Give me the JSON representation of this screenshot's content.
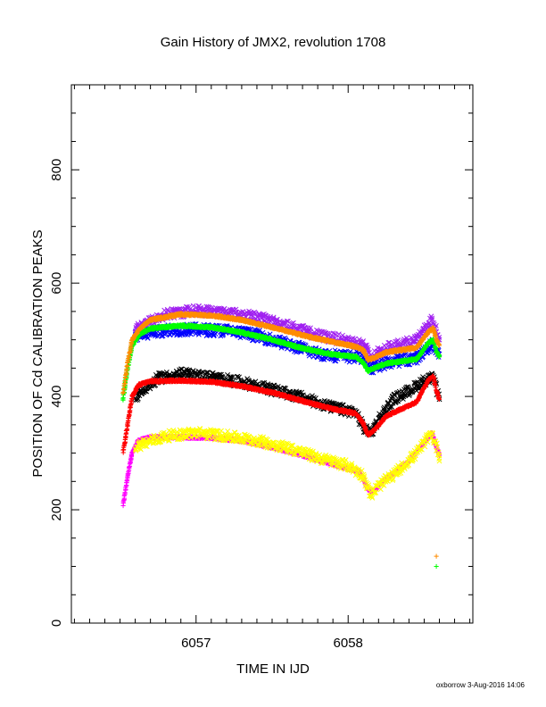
{
  "chart_data": {
    "type": "scatter",
    "title": "Gain History of JMX2, revolution 1708",
    "xlabel": "TIME IN IJD",
    "ylabel": "POSITION OF Cd CALIBRATION PEAKS",
    "xlim": [
      6056.18,
      6058.82
    ],
    "ylim": [
      0,
      950
    ],
    "x_ticks": [
      6057,
      6058
    ],
    "x_minor_step": 0.1,
    "y_ticks": [
      0,
      200,
      400,
      600,
      800
    ],
    "y_minor_step": 50,
    "grid": false,
    "footer": "oxborrow  3-Aug-2016 14:06",
    "series": [
      {
        "color": "#ff00ff",
        "marker": "plus",
        "density": 90,
        "jitter": 2,
        "points": [
          [
            6056.52,
            208
          ],
          [
            6056.55,
            260
          ],
          [
            6056.58,
            300
          ],
          [
            6056.62,
            322
          ],
          [
            6056.7,
            328
          ],
          [
            6056.9,
            328
          ],
          [
            6057.1,
            327
          ],
          [
            6057.3,
            322
          ],
          [
            6057.5,
            310
          ],
          [
            6057.7,
            296
          ],
          [
            6057.9,
            280
          ],
          [
            6058.0,
            272
          ],
          [
            6058.07,
            268
          ],
          [
            6058.1,
            255
          ],
          [
            6058.13,
            235
          ],
          [
            6058.17,
            232
          ],
          [
            6058.22,
            248
          ],
          [
            6058.3,
            265
          ],
          [
            6058.4,
            285
          ],
          [
            6058.5,
            320
          ],
          [
            6058.55,
            335
          ],
          [
            6058.58,
            312
          ],
          [
            6058.6,
            296
          ]
        ],
        "extra_points": []
      },
      {
        "color": "#ffff00",
        "marker": "x",
        "density": 30,
        "jitter": 9,
        "points": [
          [
            6056.6,
            312
          ],
          [
            6056.8,
            330
          ],
          [
            6057.0,
            336
          ],
          [
            6057.2,
            330
          ],
          [
            6057.4,
            322
          ],
          [
            6057.6,
            310
          ],
          [
            6057.8,
            292
          ],
          [
            6058.0,
            278
          ],
          [
            6058.1,
            260
          ],
          [
            6058.15,
            225
          ],
          [
            6058.2,
            242
          ],
          [
            6058.3,
            262
          ],
          [
            6058.45,
            300
          ],
          [
            6058.55,
            335
          ],
          [
            6058.6,
            296
          ]
        ],
        "extra_points": [
          [
            6058.6,
            286
          ]
        ]
      },
      {
        "color": "#000000",
        "marker": "x",
        "density": 30,
        "jitter": 9,
        "points": [
          [
            6056.6,
            400
          ],
          [
            6056.75,
            432
          ],
          [
            6056.9,
            440
          ],
          [
            6057.1,
            434
          ],
          [
            6057.3,
            425
          ],
          [
            6057.5,
            412
          ],
          [
            6057.7,
            398
          ],
          [
            6057.9,
            380
          ],
          [
            6058.05,
            372
          ],
          [
            6058.1,
            345
          ],
          [
            6058.15,
            335
          ],
          [
            6058.2,
            360
          ],
          [
            6058.3,
            395
          ],
          [
            6058.4,
            410
          ],
          [
            6058.5,
            428
          ],
          [
            6058.56,
            433
          ],
          [
            6058.6,
            395
          ]
        ],
        "extra_points": []
      },
      {
        "color": "#ff0000",
        "marker": "plus",
        "density": 90,
        "jitter": 2,
        "points": [
          [
            6056.52,
            302
          ],
          [
            6056.55,
            350
          ],
          [
            6056.58,
            400
          ],
          [
            6056.62,
            420
          ],
          [
            6056.7,
            427
          ],
          [
            6056.9,
            428
          ],
          [
            6057.1,
            426
          ],
          [
            6057.3,
            418
          ],
          [
            6057.5,
            407
          ],
          [
            6057.7,
            392
          ],
          [
            6057.9,
            378
          ],
          [
            6058.05,
            370
          ],
          [
            6058.1,
            352
          ],
          [
            6058.13,
            332
          ],
          [
            6058.17,
            340
          ],
          [
            6058.25,
            365
          ],
          [
            6058.35,
            378
          ],
          [
            6058.45,
            390
          ],
          [
            6058.53,
            430
          ],
          [
            6058.56,
            435
          ],
          [
            6058.58,
            410
          ],
          [
            6058.6,
            395
          ]
        ],
        "extra_points": []
      },
      {
        "color": "#0000ff",
        "marker": "x",
        "density": 30,
        "jitter": 10,
        "points": [
          [
            6056.6,
            505
          ],
          [
            6056.8,
            518
          ],
          [
            6057.0,
            518
          ],
          [
            6057.2,
            516
          ],
          [
            6057.4,
            508
          ],
          [
            6057.6,
            492
          ],
          [
            6057.8,
            476
          ],
          [
            6058.0,
            470
          ],
          [
            6058.1,
            470
          ],
          [
            6058.15,
            450
          ],
          [
            6058.2,
            455
          ],
          [
            6058.3,
            462
          ],
          [
            6058.45,
            468
          ],
          [
            6058.55,
            492
          ],
          [
            6058.6,
            475
          ]
        ],
        "extra_points": []
      },
      {
        "color": "#a020f0",
        "marker": "x",
        "density": 30,
        "jitter": 9,
        "points": [
          [
            6056.6,
            520
          ],
          [
            6056.8,
            545
          ],
          [
            6057.0,
            552
          ],
          [
            6057.2,
            548
          ],
          [
            6057.4,
            540
          ],
          [
            6057.6,
            525
          ],
          [
            6057.8,
            508
          ],
          [
            6058.0,
            498
          ],
          [
            6058.1,
            492
          ],
          [
            6058.15,
            468
          ],
          [
            6058.2,
            478
          ],
          [
            6058.3,
            490
          ],
          [
            6058.45,
            498
          ],
          [
            6058.55,
            535
          ],
          [
            6058.6,
            500
          ]
        ],
        "extra_points": []
      },
      {
        "color": "#00ff00",
        "marker": "plus",
        "density": 90,
        "jitter": 2,
        "points": [
          [
            6056.52,
            395
          ],
          [
            6056.55,
            450
          ],
          [
            6056.58,
            490
          ],
          [
            6056.63,
            510
          ],
          [
            6056.7,
            520
          ],
          [
            6056.9,
            525
          ],
          [
            6057.1,
            522
          ],
          [
            6057.3,
            513
          ],
          [
            6057.5,
            500
          ],
          [
            6057.7,
            485
          ],
          [
            6057.9,
            474
          ],
          [
            6058.05,
            470
          ],
          [
            6058.1,
            460
          ],
          [
            6058.13,
            445
          ],
          [
            6058.17,
            450
          ],
          [
            6058.25,
            458
          ],
          [
            6058.35,
            462
          ],
          [
            6058.45,
            466
          ],
          [
            6058.53,
            495
          ],
          [
            6058.56,
            500
          ],
          [
            6058.58,
            480
          ],
          [
            6058.6,
            470
          ]
        ],
        "extra_points": [
          [
            6058.58,
            100
          ]
        ]
      },
      {
        "color": "#ff8c00",
        "marker": "plus",
        "density": 90,
        "jitter": 2,
        "points": [
          [
            6056.52,
            405
          ],
          [
            6056.55,
            460
          ],
          [
            6056.58,
            500
          ],
          [
            6056.63,
            520
          ],
          [
            6056.7,
            535
          ],
          [
            6056.9,
            545
          ],
          [
            6057.1,
            543
          ],
          [
            6057.3,
            535
          ],
          [
            6057.5,
            522
          ],
          [
            6057.7,
            508
          ],
          [
            6057.9,
            496
          ],
          [
            6058.05,
            488
          ],
          [
            6058.1,
            482
          ],
          [
            6058.13,
            465
          ],
          [
            6058.17,
            468
          ],
          [
            6058.25,
            478
          ],
          [
            6058.35,
            482
          ],
          [
            6058.45,
            486
          ],
          [
            6058.53,
            515
          ],
          [
            6058.56,
            520
          ],
          [
            6058.58,
            500
          ],
          [
            6058.6,
            490
          ]
        ],
        "extra_points": [
          [
            6058.58,
            118
          ]
        ]
      }
    ]
  }
}
